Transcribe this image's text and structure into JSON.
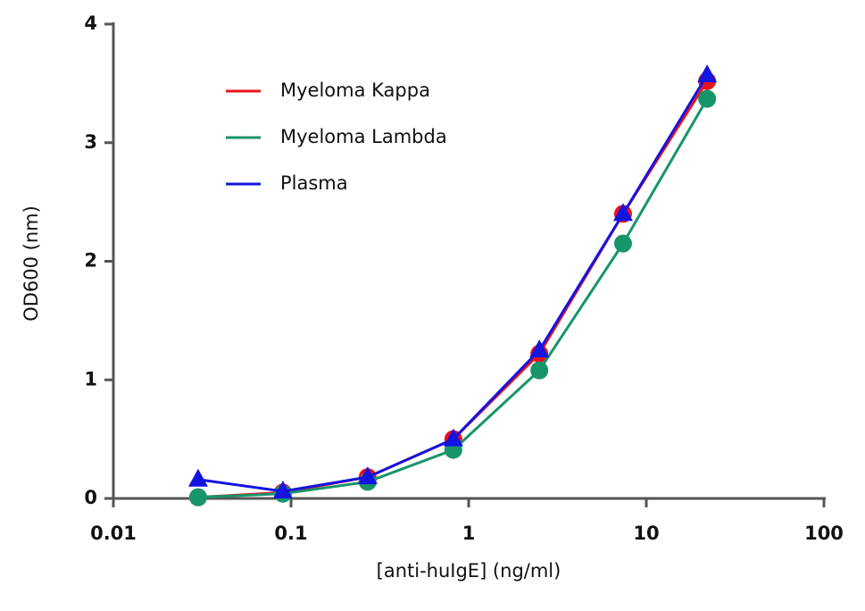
{
  "chart_data": {
    "type": "line",
    "x_label": "[anti-huIgE] (ng/ml)",
    "y_label": "OD600 (nm)",
    "x": [
      0.03,
      0.09,
      0.27,
      0.82,
      2.5,
      7.4,
      22
    ],
    "x_scale": "log",
    "xlim": [
      0.01,
      100
    ],
    "xticks": [
      0.01,
      0.1,
      1,
      10,
      100
    ],
    "ylim": [
      0,
      4
    ],
    "yticks": [
      0,
      1,
      2,
      3,
      4
    ],
    "legend": "upper left",
    "series": [
      {
        "name": "Myeloma Kappa",
        "color": "#e8141c",
        "marker": "circle",
        "values": [
          0.01,
          0.05,
          0.18,
          0.5,
          1.22,
          2.4,
          3.52
        ]
      },
      {
        "name": "Myeloma Lambda",
        "color": "#16956a",
        "marker": "circle",
        "values": [
          0.01,
          0.04,
          0.14,
          0.41,
          1.08,
          2.15,
          3.37
        ]
      },
      {
        "name": "Plasma",
        "color": "#1414e0",
        "marker": "triangle",
        "values": [
          0.16,
          0.06,
          0.18,
          0.5,
          1.25,
          2.4,
          3.57
        ]
      }
    ]
  }
}
